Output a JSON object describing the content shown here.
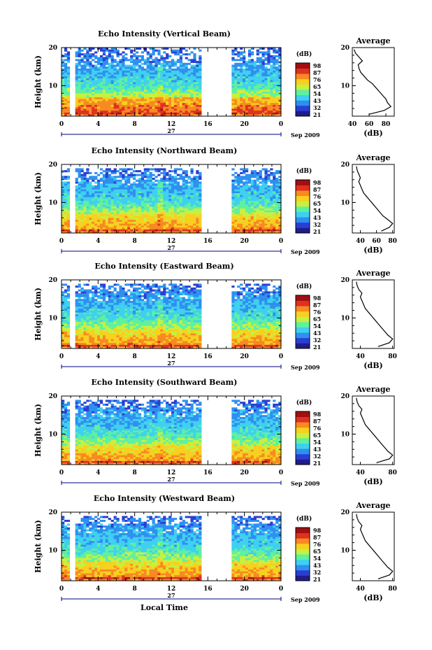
{
  "chart_data": [
    {
      "type": "heatmap",
      "title": "Echo Intensity (Vertical Beam)",
      "ylabel": "Height (km)",
      "ylim": [
        2,
        20
      ],
      "yticks": [
        "20",
        "10"
      ],
      "xlim": [
        0,
        24
      ],
      "xticks": [
        "0",
        "4",
        "8",
        "12",
        "16",
        "20",
        "0"
      ],
      "date_day": "27",
      "date_label": "Sep 2009",
      "colorbar": {
        "unit": "(dB)",
        "labels": [
          "98",
          "87",
          "76",
          "65",
          "54",
          "43",
          "32",
          "21"
        ]
      },
      "profile": {
        "title": "Average",
        "xlabel": "(dB)",
        "xticks": [
          "40",
          "60",
          "80"
        ],
        "xlim": [
          40,
          90
        ],
        "yticks": [
          "20",
          "10"
        ],
        "height": [
          2.5,
          3.5,
          4.5,
          5.5,
          6.5,
          7.5,
          8.5,
          9.5,
          10.5,
          11.5,
          12.5,
          13.5,
          14.5,
          15.5,
          16.5,
          17.5,
          18.5,
          19.5
        ],
        "values": [
          60,
          78,
          86,
          82,
          80,
          76,
          72,
          68,
          64,
          58,
          54,
          50,
          48,
          47,
          52,
          48,
          44,
          42
        ]
      }
    },
    {
      "type": "heatmap",
      "title": "Echo Intensity (Northward Beam)",
      "ylabel": "Height (km)",
      "ylim": [
        2,
        20
      ],
      "yticks": [
        "20",
        "10"
      ],
      "xlim": [
        0,
        24
      ],
      "xticks": [
        "0",
        "4",
        "8",
        "12",
        "16",
        "20",
        "0"
      ],
      "date_day": "27",
      "date_label": "Sep 2009",
      "colorbar": {
        "unit": "(dB)",
        "labels": [
          "98",
          "87",
          "76",
          "65",
          "54",
          "43",
          "32",
          "21"
        ]
      },
      "profile": {
        "title": "Average",
        "xlabel": "(dB)",
        "xticks": [
          "40",
          "60",
          "80"
        ],
        "xlim": [
          30,
          82
        ],
        "yticks": [
          "20",
          "10"
        ],
        "height": [
          2.5,
          3.5,
          4.5,
          5.5,
          6.5,
          7.5,
          8.5,
          9.5,
          10.5,
          11.5,
          12.5,
          13.5,
          14.5,
          15.5,
          16.5,
          17.5,
          18.5,
          19.5
        ],
        "values": [
          66,
          76,
          80,
          74,
          68,
          64,
          60,
          56,
          52,
          48,
          44,
          42,
          40,
          38,
          40,
          38,
          36,
          35
        ]
      }
    },
    {
      "type": "heatmap",
      "title": "Echo Intensity (Eastward Beam)",
      "ylabel": "Height (km)",
      "ylim": [
        2,
        20
      ],
      "yticks": [
        "20",
        "10"
      ],
      "xlim": [
        0,
        24
      ],
      "xticks": [
        "0",
        "4",
        "8",
        "12",
        "16",
        "20",
        "0"
      ],
      "date_day": "27",
      "date_label": "Sep 2009",
      "colorbar": {
        "unit": "(dB)",
        "labels": [
          "98",
          "87",
          "76",
          "65",
          "54",
          "43",
          "32",
          "21"
        ]
      },
      "profile": {
        "title": "Average",
        "xlabel": "(dB)",
        "xticks": [
          "40",
          "80"
        ],
        "xlim": [
          30,
          82
        ],
        "yticks": [
          "20",
          "10"
        ],
        "height": [
          2.5,
          3.5,
          4.5,
          5.5,
          6.5,
          7.5,
          8.5,
          9.5,
          10.5,
          11.5,
          12.5,
          13.5,
          14.5,
          15.5,
          16.5,
          17.5,
          18.5,
          19.5
        ],
        "values": [
          62,
          76,
          80,
          74,
          70,
          66,
          62,
          58,
          54,
          50,
          46,
          44,
          42,
          40,
          42,
          38,
          36,
          35
        ]
      }
    },
    {
      "type": "heatmap",
      "title": "Echo Intensity (Southward Beam)",
      "ylabel": "Height (km)",
      "ylim": [
        2,
        20
      ],
      "yticks": [
        "20",
        "10"
      ],
      "xlim": [
        0,
        24
      ],
      "xticks": [
        "0",
        "4",
        "8",
        "12",
        "16",
        "20",
        "0"
      ],
      "date_day": "27",
      "date_label": "Sep 2009",
      "colorbar": {
        "unit": "(dB)",
        "labels": [
          "98",
          "87",
          "76",
          "65",
          "54",
          "43",
          "32",
          "21"
        ]
      },
      "profile": {
        "title": "Average",
        "xlabel": "(dB)",
        "xticks": [
          "40",
          "80"
        ],
        "xlim": [
          30,
          82
        ],
        "yticks": [
          "20",
          "10"
        ],
        "height": [
          2.5,
          3.5,
          4.5,
          5.5,
          6.5,
          7.5,
          8.5,
          9.5,
          10.5,
          11.5,
          12.5,
          13.5,
          14.5,
          15.5,
          16.5,
          17.5,
          18.5,
          19.5
        ],
        "values": [
          60,
          76,
          80,
          74,
          70,
          66,
          62,
          58,
          54,
          50,
          46,
          44,
          42,
          40,
          42,
          38,
          36,
          35
        ]
      }
    },
    {
      "type": "heatmap",
      "title": "Echo Intensity (Westward Beam)",
      "ylabel": "Height (km)",
      "ylim": [
        2,
        20
      ],
      "yticks": [
        "20",
        "10"
      ],
      "xlim": [
        0,
        24
      ],
      "xticks": [
        "0",
        "4",
        "8",
        "12",
        "16",
        "20",
        "0"
      ],
      "date_day": "27",
      "date_label": "Sep 2009",
      "xlabel": "Local Time",
      "colorbar": {
        "unit": "(dB)",
        "labels": [
          "98",
          "87",
          "76",
          "65",
          "54",
          "43",
          "32",
          "21"
        ]
      },
      "profile": {
        "title": "Average",
        "xlabel": "(dB)",
        "xticks": [
          "40",
          "80"
        ],
        "xlim": [
          30,
          82
        ],
        "yticks": [
          "20",
          "10"
        ],
        "height": [
          2.5,
          3.5,
          4.5,
          5.5,
          6.5,
          7.5,
          8.5,
          9.5,
          10.5,
          11.5,
          12.5,
          13.5,
          14.5,
          15.5,
          16.5,
          17.5,
          18.5,
          19.5
        ],
        "values": [
          62,
          76,
          80,
          74,
          70,
          66,
          62,
          58,
          54,
          50,
          46,
          44,
          42,
          40,
          42,
          38,
          36,
          35
        ]
      }
    }
  ],
  "colors": {
    "colormap": [
      "#1f1c8c",
      "#2a3fd0",
      "#2f8ff0",
      "#3fd0f0",
      "#5ff0a0",
      "#c8f040",
      "#f7d020",
      "#f78a20",
      "#e03020",
      "#a01010"
    ],
    "axis": "#000000",
    "date_bar": "#000080"
  }
}
